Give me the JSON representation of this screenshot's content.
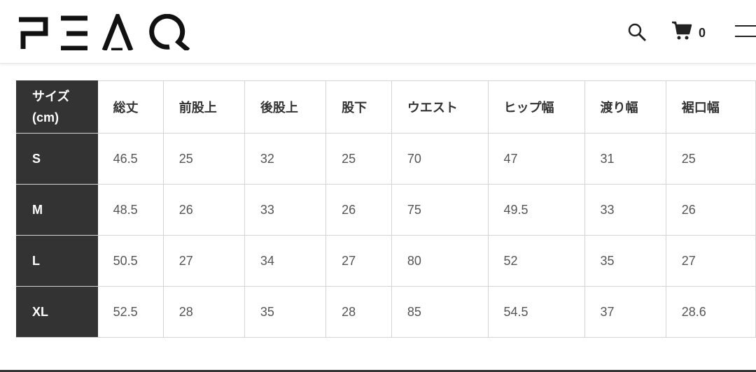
{
  "header": {
    "logo": "PEAQ",
    "cart_count": "0",
    "icons": [
      "search-icon",
      "cart-icon",
      "menu-icon"
    ]
  },
  "table": {
    "corner": {
      "line1": "サイズ",
      "line2": "(cm)"
    },
    "columns": [
      "総丈",
      "前股上",
      "後股上",
      "股下",
      "ウエスト",
      "ヒップ幅",
      "渡り幅",
      "裾口幅"
    ],
    "rows": [
      {
        "size": "S",
        "values": [
          "46.5",
          "25",
          "32",
          "25",
          "70",
          "47",
          "31",
          "25"
        ]
      },
      {
        "size": "M",
        "values": [
          "48.5",
          "26",
          "33",
          "26",
          "75",
          "49.5",
          "33",
          "26"
        ]
      },
      {
        "size": "L",
        "values": [
          "50.5",
          "27",
          "34",
          "27",
          "80",
          "52",
          "35",
          "27"
        ]
      },
      {
        "size": "XL",
        "values": [
          "52.5",
          "28",
          "35",
          "28",
          "85",
          "54.5",
          "37",
          "28.6"
        ]
      }
    ]
  }
}
